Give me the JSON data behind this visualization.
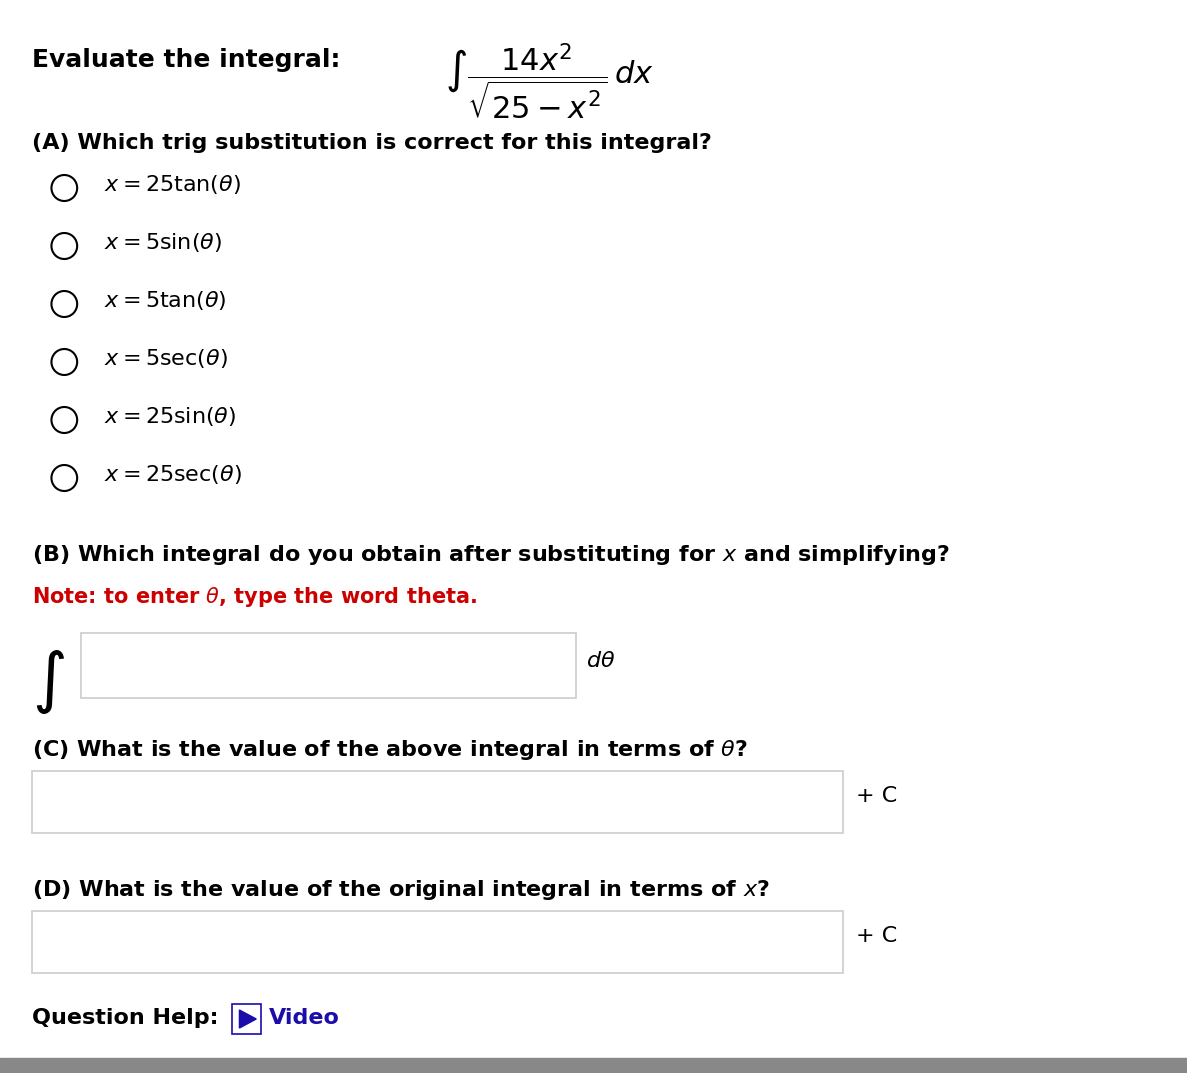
{
  "title_label": "Evaluate the integral:",
  "integral_expr": "$\\int \\dfrac{14x^2}{\\sqrt{25 - x^2}}\\,dx$",
  "part_A_label": "(A) Which trig substitution is correct for this integral?",
  "options": [
    "$x = 25\\tan(\\theta)$",
    "$x = 5\\sin(\\theta)$",
    "$x = 5\\tan(\\theta)$",
    "$x = 5\\sec(\\theta)$",
    "$x = 25\\sin(\\theta)$",
    "$x = 25\\sec(\\theta)$"
  ],
  "part_B_label": "(B) Which integral do you obtain after substituting for $x$ and simplifying?",
  "part_B_note": "Note: to enter $\\theta$, type the word theta.",
  "part_B_suffix": "$d\\theta$",
  "part_C_label": "(C) What is the value of the above integral in terms of $\\theta$?",
  "part_C_suffix": "+ C",
  "part_D_label": "(D) What is the value of the original integral in terms of $x$?",
  "part_D_suffix": "+ C",
  "question_help": "Question Help:",
  "video_label": "Video",
  "bg_color": "#ffffff",
  "text_color": "#000000",
  "red_color": "#cc0000",
  "blue_color": "#1a0dab",
  "box_color": "#cccccc",
  "bottom_bar_color": "#888888"
}
